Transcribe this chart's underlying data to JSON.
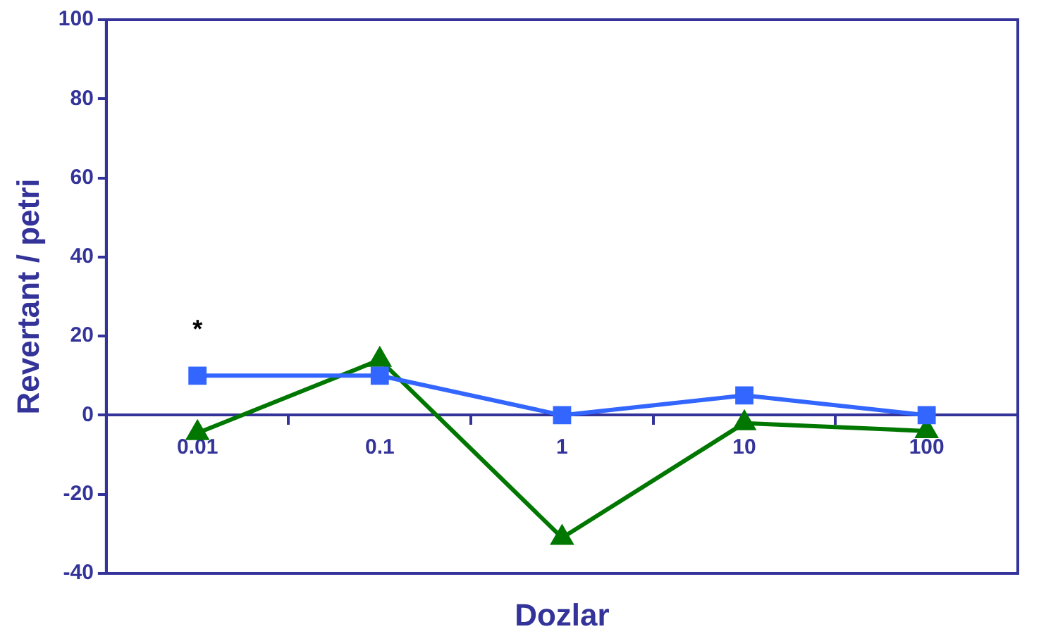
{
  "chart_data": {
    "type": "line",
    "xlabel": "Dozlar",
    "ylabel": "Revertant / petri",
    "categories": [
      "0.01",
      "0.1",
      "1",
      "10",
      "100"
    ],
    "series": [
      {
        "color": "#3366ff",
        "marker": "square",
        "values": [
          10,
          10,
          0,
          5,
          0
        ]
      },
      {
        "color": "#007700",
        "marker": "triangle",
        "values": [
          -4.5,
          14,
          -31,
          -2,
          -4
        ]
      }
    ],
    "ylim": [
      -40,
      100
    ],
    "yticks": [
      -40,
      -20,
      0,
      20,
      40,
      60,
      80,
      100
    ],
    "grid": false,
    "legend": false,
    "annotations": [
      "*"
    ]
  }
}
